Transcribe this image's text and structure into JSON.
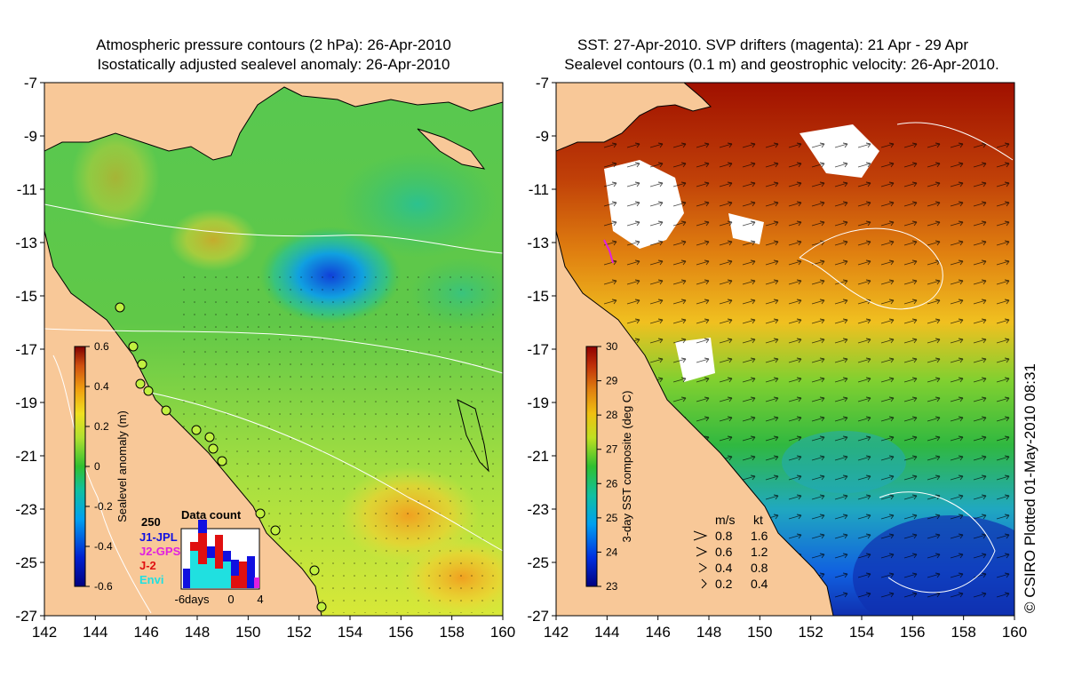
{
  "left_panel": {
    "title_line1": "Atmospheric pressure contours (2 hPa): 26-Apr-2010",
    "title_line2": "Isostatically adjusted sealevel anomaly: 26-Apr-2010",
    "colorbar_label": "Sealevel anomaly (m)",
    "colorbar_ticks": [
      "0.6",
      "0.4",
      "0.2",
      "0",
      "-0.2",
      "-0.4",
      "-0.6"
    ],
    "inset": {
      "title": "Data count",
      "ymax_label": "250",
      "legend": [
        {
          "name": "J1-JPL",
          "color": "#1010e0"
        },
        {
          "name": "J2-GPS",
          "color": "#e020e0"
        },
        {
          "name": "J-2",
          "color": "#e01010"
        },
        {
          "name": "Envi",
          "color": "#20e0e0"
        }
      ],
      "xticks": [
        "-6days",
        "0",
        "4"
      ]
    }
  },
  "right_panel": {
    "title_line1": "SST: 27-Apr-2010. SVP drifters (magenta): 21 Apr - 29 Apr",
    "title_line2": "Sealevel contours (0.1 m) and geostrophic velocity: 26-Apr-2010.",
    "colorbar_label": "3-day SST composite (deg C)",
    "colorbar_ticks": [
      "30",
      "29",
      "28",
      "27",
      "26",
      "25",
      "24",
      "23"
    ],
    "velocity_key": {
      "header_ms": "m/s",
      "header_kt": "kt",
      "rows": [
        {
          "ms": "0.8",
          "kt": "1.6"
        },
        {
          "ms": "0.6",
          "kt": "1.2"
        },
        {
          "ms": "0.4",
          "kt": "0.8"
        },
        {
          "ms": "0.2",
          "kt": "0.4"
        }
      ]
    }
  },
  "axes": {
    "lon_ticks": [
      "142",
      "144",
      "146",
      "148",
      "150",
      "152",
      "154",
      "156",
      "158",
      "160"
    ],
    "lat_ticks": [
      "-7",
      "-9",
      "-11",
      "-13",
      "-15",
      "-17",
      "-19",
      "-21",
      "-23",
      "-25",
      "-27"
    ]
  },
  "credit": "© CSIRO Plotted 01-May-2010 08:31",
  "colors": {
    "land": "#f8c898",
    "anomaly_mid": "#98e040",
    "anomaly_low": "#1a64e0",
    "sst_hot": "#a01000",
    "sst_cool": "#1040c8",
    "drifter": "#e020e0"
  }
}
